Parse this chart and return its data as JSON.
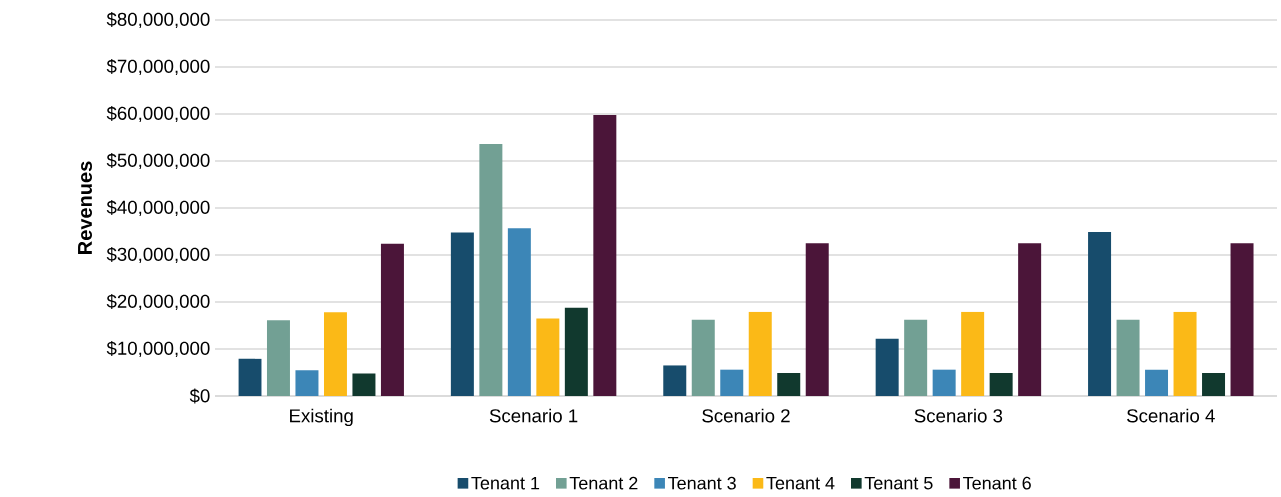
{
  "chart_data": {
    "type": "bar",
    "ylabel": "Revenues",
    "categories": [
      "Existing",
      "Scenario 1",
      "Scenario 2",
      "Scenario 3",
      "Scenario 4"
    ],
    "series": [
      {
        "name": "Tenant 1",
        "color": "#174c6c",
        "values": [
          7900000,
          34800000,
          6500000,
          12200000,
          34900000
        ]
      },
      {
        "name": "Tenant 2",
        "color": "#72a094",
        "values": [
          16100000,
          53600000,
          16200000,
          16200000,
          16200000
        ]
      },
      {
        "name": "Tenant 3",
        "color": "#3c86b7",
        "values": [
          5500000,
          35700000,
          5600000,
          5600000,
          5600000
        ]
      },
      {
        "name": "Tenant 4",
        "color": "#fbb917",
        "values": [
          17800000,
          16500000,
          17900000,
          17900000,
          17900000
        ]
      },
      {
        "name": "Tenant 5",
        "color": "#11392e",
        "values": [
          4800000,
          18800000,
          4900000,
          4900000,
          4900000
        ]
      },
      {
        "name": "Tenant 6",
        "color": "#4b1539",
        "values": [
          32400000,
          59800000,
          32500000,
          32500000,
          32500000
        ]
      }
    ],
    "ylim": [
      0,
      80000000
    ],
    "yticks": [
      {
        "value": 0,
        "label": "$0"
      },
      {
        "value": 10000000,
        "label": "$10,000,000"
      },
      {
        "value": 20000000,
        "label": "$20,000,000"
      },
      {
        "value": 30000000,
        "label": "$30,000,000"
      },
      {
        "value": 40000000,
        "label": "$40,000,000"
      },
      {
        "value": 50000000,
        "label": "$50,000,000"
      },
      {
        "value": 60000000,
        "label": "$60,000,000"
      },
      {
        "value": 70000000,
        "label": "$70,000,000"
      },
      {
        "value": 80000000,
        "label": "$80,000,000"
      }
    ],
    "grid": "y",
    "legend": "bottom"
  }
}
